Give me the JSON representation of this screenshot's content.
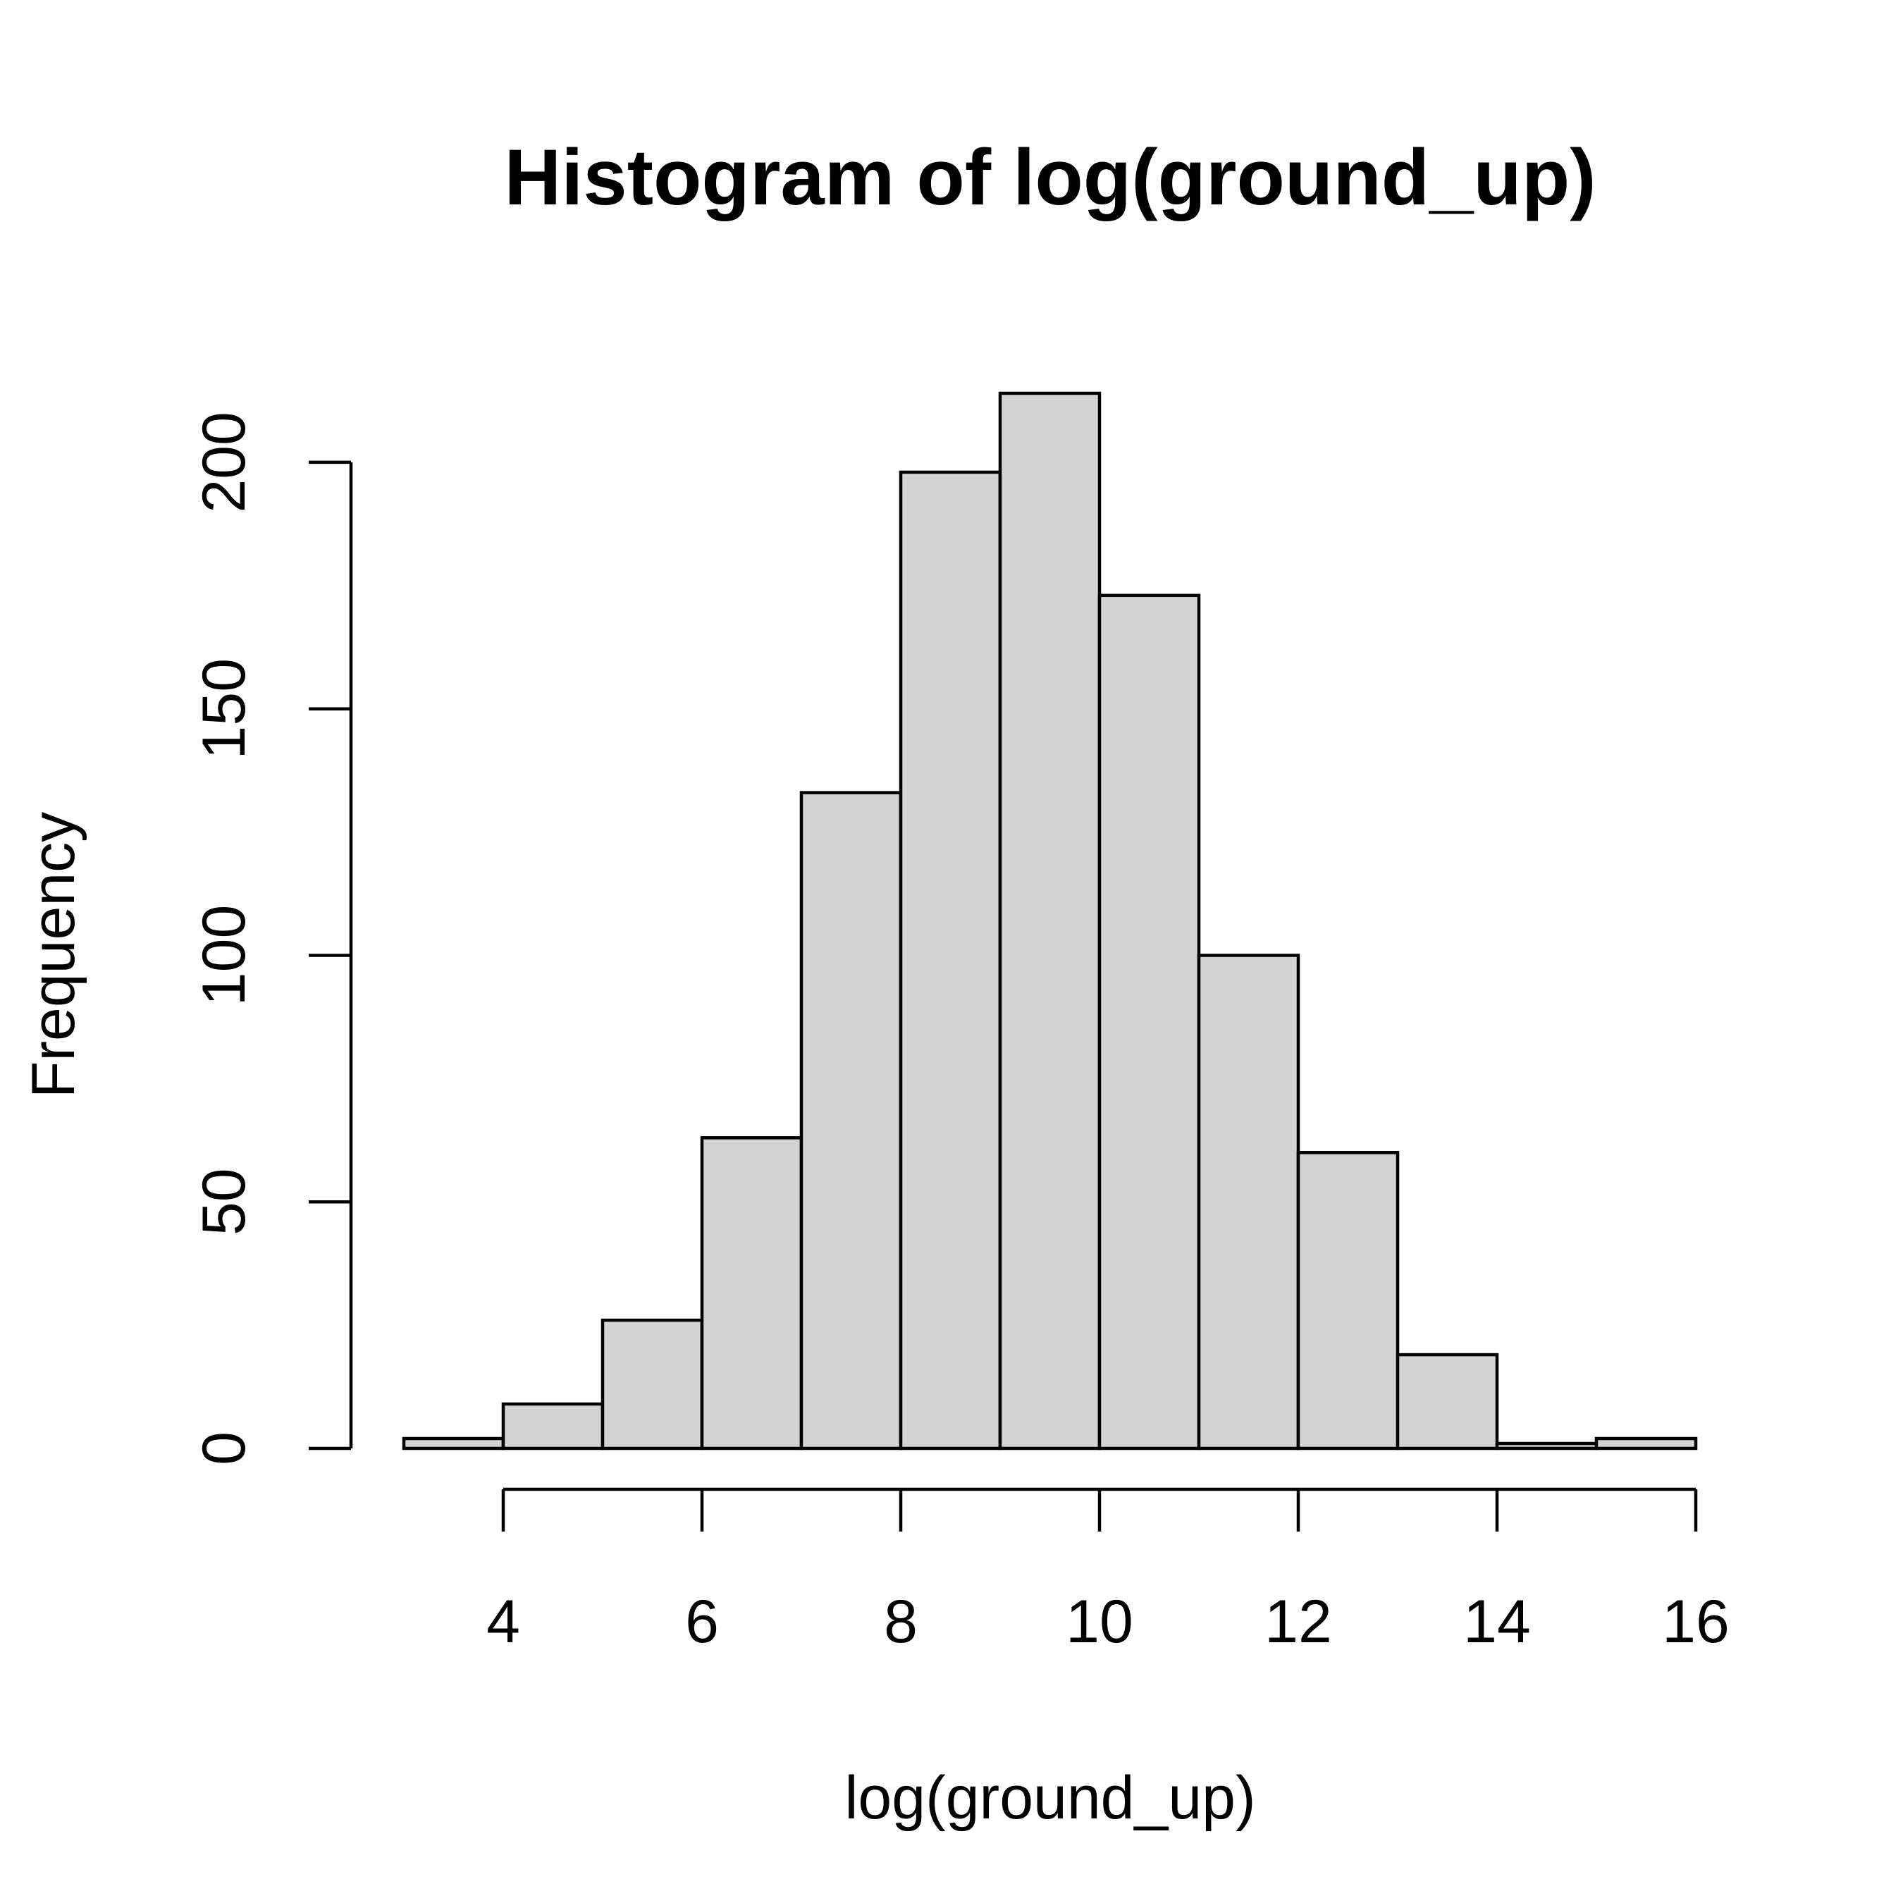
{
  "chart_data": {
    "type": "bar",
    "title": "Histogram of log(ground_up)",
    "xlabel": "log(ground_up)",
    "ylabel": "Frequency",
    "bins": [
      {
        "from": 3,
        "to": 4,
        "count": 2
      },
      {
        "from": 4,
        "to": 5,
        "count": 9
      },
      {
        "from": 5,
        "to": 6,
        "count": 26
      },
      {
        "from": 6,
        "to": 7,
        "count": 63
      },
      {
        "from": 7,
        "to": 8,
        "count": 133
      },
      {
        "from": 8,
        "to": 9,
        "count": 198
      },
      {
        "from": 9,
        "to": 10,
        "count": 214
      },
      {
        "from": 10,
        "to": 11,
        "count": 173
      },
      {
        "from": 11,
        "to": 12,
        "count": 100
      },
      {
        "from": 12,
        "to": 13,
        "count": 60
      },
      {
        "from": 13,
        "to": 14,
        "count": 19
      },
      {
        "from": 14,
        "to": 15,
        "count": 1
      },
      {
        "from": 15,
        "to": 16,
        "count": 2
      }
    ],
    "x_ticks": [
      4,
      6,
      8,
      10,
      12,
      14,
      16
    ],
    "x_tick_labels": [
      "4",
      "6",
      "8",
      "10",
      "12",
      "14",
      "16"
    ],
    "y_ticks": [
      0,
      50,
      100,
      150,
      200
    ],
    "y_tick_labels": [
      "0",
      "50",
      "100",
      "150",
      "200"
    ],
    "xlim": [
      3,
      16
    ],
    "ylim": [
      0,
      214
    ],
    "bar_fill": "#d3d3d3",
    "bar_stroke": "#000000",
    "grid": false,
    "legend": "none"
  }
}
